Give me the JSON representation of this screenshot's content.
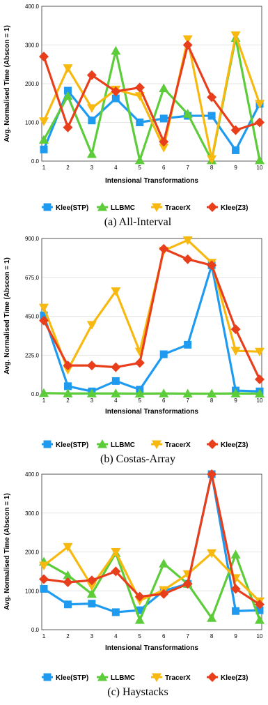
{
  "colors": {
    "Klee(STP)": "#1e9bf0",
    "LLBMC": "#5ccc3a",
    "TracerX": "#f7b90f",
    "Klee(Z3)": "#e83e1c"
  },
  "chart_data": [
    {
      "type": "line",
      "caption": "(a) All-Interval",
      "xlabel": "Intensional Transformations",
      "ylabel": "Avg. Normalised Time (Abscon = 1)",
      "x": [
        1,
        2,
        3,
        4,
        5,
        6,
        7,
        8,
        9,
        10
      ],
      "ylim": [
        0,
        400
      ],
      "yticks": [
        "0.0",
        "100.0",
        "200.0",
        "300.0",
        "400.0"
      ],
      "yticks_values": [
        0,
        100,
        200,
        300,
        400
      ],
      "grid": true,
      "legend_position": "bottom",
      "series": [
        {
          "name": "Klee(STP)",
          "marker": "square",
          "values": [
            30,
            182,
            105,
            162,
            100,
            110,
            117,
            117,
            28,
            148
          ]
        },
        {
          "name": "LLBMC",
          "marker": "triangle-up",
          "values": [
            55,
            168,
            18,
            285,
            2,
            188,
            122,
            2,
            318,
            2
          ]
        },
        {
          "name": "TracerX",
          "marker": "triangle-down",
          "values": [
            103,
            240,
            137,
            185,
            168,
            35,
            315,
            5,
            325,
            148
          ]
        },
        {
          "name": "Klee(Z3)",
          "marker": "diamond",
          "values": [
            270,
            87,
            222,
            180,
            190,
            50,
            300,
            165,
            80,
            100
          ]
        }
      ]
    },
    {
      "type": "line",
      "caption": "(b) Costas-Array",
      "xlabel": "Intensional Transformations",
      "ylabel": "Avg. Normalised Time (Abscon = 1)",
      "x": [
        1,
        2,
        3,
        4,
        5,
        6,
        7,
        8,
        9,
        10
      ],
      "ylim": [
        0,
        900
      ],
      "yticks": [
        "0.0",
        "225.0",
        "450.0",
        "675.0",
        "900.0"
      ],
      "yticks_values": [
        0,
        225,
        450,
        675,
        900
      ],
      "grid": true,
      "legend_position": "bottom",
      "series": [
        {
          "name": "Klee(STP)",
          "marker": "square",
          "values": [
            455,
            45,
            15,
            75,
            25,
            230,
            285,
            745,
            20,
            15
          ]
        },
        {
          "name": "LLBMC",
          "marker": "triangle-up",
          "values": [
            5,
            3,
            3,
            3,
            2,
            3,
            2,
            2,
            3,
            2
          ]
        },
        {
          "name": "TracerX",
          "marker": "triangle-down",
          "values": [
            500,
            140,
            400,
            595,
            245,
            830,
            890,
            760,
            250,
            245
          ]
        },
        {
          "name": "Klee(Z3)",
          "marker": "diamond",
          "values": [
            425,
            165,
            165,
            155,
            180,
            840,
            780,
            745,
            375,
            85
          ]
        }
      ]
    },
    {
      "type": "line",
      "caption": "(c) Haystacks",
      "xlabel": "Intensional Transformations",
      "ylabel": "Avg. Normalised Time (Abscon = 1)",
      "x": [
        1,
        2,
        3,
        4,
        5,
        6,
        7,
        8,
        9,
        10
      ],
      "ylim": [
        0,
        400
      ],
      "yticks": [
        "0.0",
        "100.0",
        "200.0",
        "300.0",
        "400.0"
      ],
      "yticks_values": [
        0,
        100,
        200,
        300,
        400
      ],
      "grid": true,
      "legend_position": "bottom",
      "series": [
        {
          "name": "Klee(STP)",
          "marker": "square",
          "values": [
            105,
            65,
            67,
            45,
            50,
            100,
            118,
            400,
            48,
            50
          ]
        },
        {
          "name": "LLBMC",
          "marker": "triangle-up",
          "values": [
            175,
            140,
            92,
            197,
            25,
            170,
            118,
            30,
            193,
            25
          ]
        },
        {
          "name": "TracerX",
          "marker": "triangle-down",
          "values": [
            165,
            213,
            112,
            200,
            75,
            102,
            143,
            197,
            133,
            73
          ]
        },
        {
          "name": "Klee(Z3)",
          "marker": "diamond",
          "values": [
            130,
            122,
            127,
            150,
            85,
            92,
            118,
            400,
            105,
            65
          ]
        }
      ]
    }
  ]
}
